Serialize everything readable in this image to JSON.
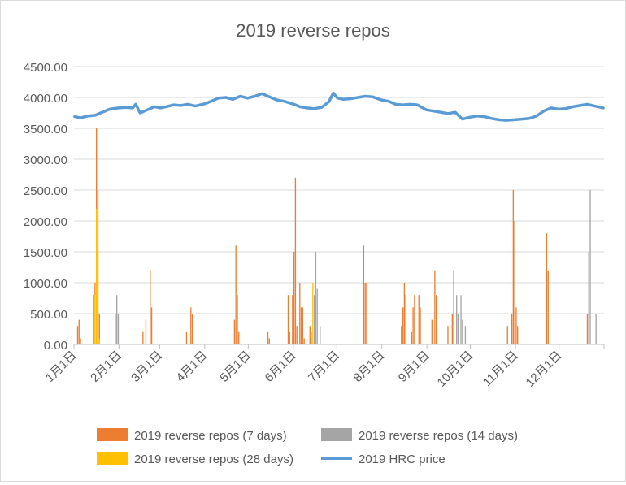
{
  "chart_data": {
    "type": "bar+line",
    "title": "2019 reverse repos",
    "ylim": [
      0,
      4500
    ],
    "y_ticks": [
      "0.00",
      "500.00",
      "1000.00",
      "1500.00",
      "2000.00",
      "2500.00",
      "3000.00",
      "3500.00",
      "4000.00",
      "4500.00"
    ],
    "x_range": [
      "2019-01-01",
      "2019-12-31"
    ],
    "x_ticks": [
      {
        "date": "2019-01-01",
        "label": "1月1日"
      },
      {
        "date": "2019-02-01",
        "label": "2月1日"
      },
      {
        "date": "2019-03-01",
        "label": "3月1日"
      },
      {
        "date": "2019-04-01",
        "label": "4月1日"
      },
      {
        "date": "2019-05-01",
        "label": "5月1日"
      },
      {
        "date": "2019-06-01",
        "label": "6月1日"
      },
      {
        "date": "2019-07-01",
        "label": "7月1日"
      },
      {
        "date": "2019-08-01",
        "label": "8月1日"
      },
      {
        "date": "2019-09-01",
        "label": "9月1日"
      },
      {
        "date": "2019-10-01",
        "label": "10月1日"
      },
      {
        "date": "2019-11-01",
        "label": "11月1日"
      },
      {
        "date": "2019-12-01",
        "label": "12月1日"
      }
    ],
    "grid": true,
    "legend_position": "bottom",
    "series": [
      {
        "name": "2019 reverse repos (7 days)",
        "type": "bar",
        "color": "#ED7D31",
        "points": [
          [
            "2019-01-03",
            300
          ],
          [
            "2019-01-04",
            400
          ],
          [
            "2019-01-05",
            100
          ],
          [
            "2019-01-14",
            800
          ],
          [
            "2019-01-15",
            1000
          ],
          [
            "2019-01-16",
            3500
          ],
          [
            "2019-01-17",
            2500
          ],
          [
            "2019-01-18",
            500
          ],
          [
            "2019-02-17",
            200
          ],
          [
            "2019-02-19",
            400
          ],
          [
            "2019-02-22",
            1200
          ],
          [
            "2019-02-23",
            600
          ],
          [
            "2019-03-19",
            200
          ],
          [
            "2019-03-22",
            600
          ],
          [
            "2019-03-23",
            500
          ],
          [
            "2019-04-21",
            400
          ],
          [
            "2019-04-22",
            1600
          ],
          [
            "2019-04-23",
            800
          ],
          [
            "2019-04-24",
            200
          ],
          [
            "2019-05-14",
            200
          ],
          [
            "2019-05-15",
            100
          ],
          [
            "2019-05-28",
            800
          ],
          [
            "2019-05-29",
            200
          ],
          [
            "2019-05-31",
            800
          ],
          [
            "2019-06-01",
            1500
          ],
          [
            "2019-06-02",
            2700
          ],
          [
            "2019-06-03",
            300
          ],
          [
            "2019-06-05",
            1000
          ],
          [
            "2019-06-06",
            600
          ],
          [
            "2019-06-07",
            600
          ],
          [
            "2019-06-08",
            100
          ],
          [
            "2019-06-12",
            300
          ],
          [
            "2019-06-13",
            100
          ],
          [
            "2019-07-19",
            1600
          ],
          [
            "2019-07-20",
            1000
          ],
          [
            "2019-07-21",
            1000
          ],
          [
            "2019-08-14",
            300
          ],
          [
            "2019-08-15",
            600
          ],
          [
            "2019-08-16",
            1000
          ],
          [
            "2019-08-17",
            800
          ],
          [
            "2019-08-21",
            200
          ],
          [
            "2019-08-22",
            600
          ],
          [
            "2019-08-23",
            800
          ],
          [
            "2019-08-26",
            800
          ],
          [
            "2019-08-27",
            600
          ],
          [
            "2019-09-04",
            400
          ],
          [
            "2019-09-06",
            1200
          ],
          [
            "2019-09-07",
            800
          ],
          [
            "2019-09-15",
            300
          ],
          [
            "2019-09-18",
            500
          ],
          [
            "2019-09-19",
            1200
          ],
          [
            "2019-10-26",
            300
          ],
          [
            "2019-10-29",
            500
          ],
          [
            "2019-10-30",
            2500
          ],
          [
            "2019-10-31",
            2000
          ],
          [
            "2019-11-01",
            600
          ],
          [
            "2019-11-02",
            300
          ],
          [
            "2019-11-22",
            1800
          ],
          [
            "2019-11-23",
            1200
          ],
          [
            "2019-12-20",
            500
          ]
        ]
      },
      {
        "name": "2019 reverse repos (14 days)",
        "type": "bar",
        "color": "#A5A5A5",
        "points": [
          [
            "2019-01-29",
            500
          ],
          [
            "2019-01-30",
            800
          ],
          [
            "2019-01-31",
            500
          ],
          [
            "2019-06-15",
            800
          ],
          [
            "2019-06-16",
            1500
          ],
          [
            "2019-06-17",
            900
          ],
          [
            "2019-06-19",
            300
          ],
          [
            "2019-09-21",
            800
          ],
          [
            "2019-09-22",
            500
          ],
          [
            "2019-09-24",
            800
          ],
          [
            "2019-09-25",
            400
          ],
          [
            "2019-09-27",
            300
          ],
          [
            "2019-12-21",
            1500
          ],
          [
            "2019-12-22",
            2500
          ],
          [
            "2019-12-26",
            500
          ]
        ]
      },
      {
        "name": "2019 reverse repos (28 days)",
        "type": "bar",
        "color": "#FFC000",
        "points": [
          [
            "2019-01-15",
            800
          ],
          [
            "2019-01-16",
            2200
          ],
          [
            "2019-01-17",
            1500
          ],
          [
            "2019-01-18",
            100
          ],
          [
            "2019-06-13",
            200
          ],
          [
            "2019-06-14",
            1000
          ]
        ]
      },
      {
        "name": "2019 HRC price",
        "type": "line",
        "color": "#5B9BD5",
        "points": [
          [
            "2019-01-01",
            3690
          ],
          [
            "2019-01-05",
            3670
          ],
          [
            "2019-01-10",
            3700
          ],
          [
            "2019-01-15",
            3710
          ],
          [
            "2019-01-20",
            3760
          ],
          [
            "2019-01-25",
            3810
          ],
          [
            "2019-01-31",
            3830
          ],
          [
            "2019-02-05",
            3840
          ],
          [
            "2019-02-10",
            3830
          ],
          [
            "2019-02-12",
            3890
          ],
          [
            "2019-02-15",
            3750
          ],
          [
            "2019-02-20",
            3800
          ],
          [
            "2019-02-25",
            3850
          ],
          [
            "2019-03-01",
            3830
          ],
          [
            "2019-03-05",
            3850
          ],
          [
            "2019-03-10",
            3880
          ],
          [
            "2019-03-15",
            3870
          ],
          [
            "2019-03-20",
            3890
          ],
          [
            "2019-03-25",
            3860
          ],
          [
            "2019-04-01",
            3900
          ],
          [
            "2019-04-05",
            3940
          ],
          [
            "2019-04-10",
            3990
          ],
          [
            "2019-04-15",
            4000
          ],
          [
            "2019-04-20",
            3970
          ],
          [
            "2019-04-25",
            4020
          ],
          [
            "2019-04-30",
            3990
          ],
          [
            "2019-05-05",
            4020
          ],
          [
            "2019-05-10",
            4060
          ],
          [
            "2019-05-15",
            4010
          ],
          [
            "2019-05-20",
            3960
          ],
          [
            "2019-05-25",
            3940
          ],
          [
            "2019-06-01",
            3890
          ],
          [
            "2019-06-05",
            3850
          ],
          [
            "2019-06-10",
            3830
          ],
          [
            "2019-06-15",
            3820
          ],
          [
            "2019-06-20",
            3840
          ],
          [
            "2019-06-25",
            3930
          ],
          [
            "2019-06-28",
            4070
          ],
          [
            "2019-07-01",
            3990
          ],
          [
            "2019-07-05",
            3970
          ],
          [
            "2019-07-10",
            3980
          ],
          [
            "2019-07-15",
            4000
          ],
          [
            "2019-07-20",
            4020
          ],
          [
            "2019-07-25",
            4010
          ],
          [
            "2019-07-31",
            3960
          ],
          [
            "2019-08-05",
            3940
          ],
          [
            "2019-08-10",
            3890
          ],
          [
            "2019-08-15",
            3880
          ],
          [
            "2019-08-20",
            3890
          ],
          [
            "2019-08-25",
            3880
          ],
          [
            "2019-08-31",
            3800
          ],
          [
            "2019-09-05",
            3780
          ],
          [
            "2019-09-10",
            3760
          ],
          [
            "2019-09-15",
            3740
          ],
          [
            "2019-09-20",
            3760
          ],
          [
            "2019-09-25",
            3650
          ],
          [
            "2019-09-30",
            3680
          ],
          [
            "2019-10-05",
            3700
          ],
          [
            "2019-10-10",
            3690
          ],
          [
            "2019-10-15",
            3660
          ],
          [
            "2019-10-20",
            3640
          ],
          [
            "2019-10-25",
            3630
          ],
          [
            "2019-10-31",
            3640
          ],
          [
            "2019-11-05",
            3650
          ],
          [
            "2019-11-10",
            3660
          ],
          [
            "2019-11-15",
            3700
          ],
          [
            "2019-11-20",
            3780
          ],
          [
            "2019-11-25",
            3830
          ],
          [
            "2019-11-30",
            3810
          ],
          [
            "2019-12-05",
            3820
          ],
          [
            "2019-12-10",
            3850
          ],
          [
            "2019-12-15",
            3870
          ],
          [
            "2019-12-20",
            3890
          ],
          [
            "2019-12-25",
            3860
          ],
          [
            "2019-12-31",
            3830
          ]
        ]
      }
    ]
  }
}
